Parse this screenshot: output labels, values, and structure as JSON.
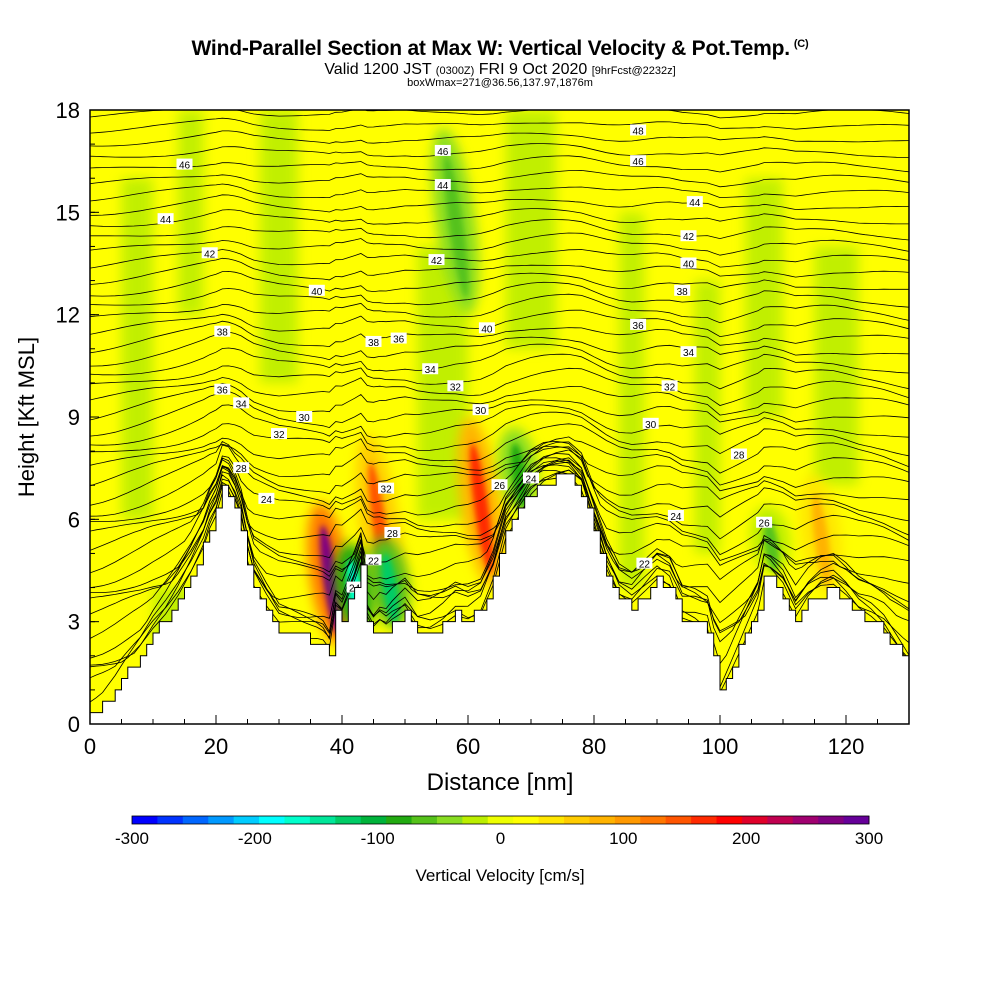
{
  "title": {
    "main": "Wind-Parallel Section at Max W: Vertical Velocity & Pot.Temp.",
    "copyright": "(C)",
    "valid_prefix": "Valid 1200 JST",
    "valid_utc": "(0300Z)",
    "valid_suffix": "FRI 9 Oct 2020",
    "forecast": "[9hrFcst@2232z]",
    "box": "boxWmax=271@36.56,137.97,1876m"
  },
  "chart_data": {
    "type": "heatmap",
    "xlabel": "Distance [nm]",
    "ylabel": "Height [Kft MSL]",
    "xlim": [
      0,
      130
    ],
    "ylim": [
      0,
      18
    ],
    "xticks": [
      0,
      20,
      40,
      60,
      80,
      100,
      120
    ],
    "yticks": [
      0,
      3,
      6,
      9,
      12,
      15,
      18
    ],
    "terrain": {
      "x": [
        0,
        2,
        4,
        6,
        8,
        10,
        12,
        14,
        16,
        18,
        19,
        20,
        21,
        22,
        23,
        24,
        25,
        26,
        28,
        30,
        32,
        34,
        36,
        37,
        38,
        39,
        40,
        41,
        42,
        43,
        44,
        45,
        46,
        47,
        48,
        50,
        52,
        54,
        56,
        58,
        60,
        62,
        64,
        66,
        68,
        70,
        72,
        74,
        76,
        78,
        80,
        82,
        84,
        86,
        88,
        90,
        92,
        94,
        96,
        98,
        100,
        102,
        104,
        106,
        107,
        108,
        110,
        112,
        114,
        116,
        118,
        120,
        122,
        124,
        126,
        128,
        130
      ],
      "height": [
        0.3,
        0.6,
        1.0,
        1.5,
        2.0,
        2.6,
        3.1,
        3.7,
        4.4,
        5.2,
        5.8,
        6.2,
        6.9,
        6.8,
        6.4,
        5.8,
        4.8,
        4.0,
        3.3,
        2.7,
        2.6,
        2.5,
        2.4,
        2.3,
        2.0,
        3.2,
        3.0,
        3.5,
        4.0,
        4.6,
        2.9,
        2.6,
        2.8,
        2.7,
        2.9,
        3.2,
        2.7,
        2.7,
        2.9,
        3.2,
        3.1,
        3.3,
        4.2,
        5.6,
        6.2,
        6.8,
        7.1,
        7.2,
        7.2,
        6.8,
        5.6,
        4.4,
        3.6,
        3.4,
        3.8,
        4.2,
        4.0,
        3.1,
        3.0,
        2.8,
        1.0,
        1.8,
        2.6,
        3.4,
        4.3,
        4.2,
        3.8,
        3.0,
        3.5,
        3.8,
        3.9,
        3.6,
        3.2,
        3.0,
        2.7,
        2.2,
        1.7
      ]
    },
    "updraft_cores": [
      {
        "x": 38,
        "bottom": 2.3,
        "top": 6.5,
        "value": 260
      },
      {
        "x": 46,
        "bottom": 3.0,
        "top": 8.5,
        "value": 140
      },
      {
        "x": 62,
        "bottom": 4.0,
        "top": 9.0,
        "value": 170
      },
      {
        "x": 116,
        "bottom": 3.8,
        "top": 7.3,
        "value": 80
      }
    ],
    "downdraft_cores": [
      {
        "x": 42,
        "bottom": 2.7,
        "top": 5.3,
        "value": -160
      },
      {
        "x": 47.5,
        "bottom": 2.8,
        "top": 5.5,
        "value": -120
      },
      {
        "x": 68,
        "bottom": 6.2,
        "top": 8.7,
        "value": -80
      },
      {
        "x": 108,
        "bottom": 4.4,
        "top": 6.4,
        "value": -60
      },
      {
        "x": 58,
        "bottom": 12.0,
        "top": 17.5,
        "value": -70
      }
    ],
    "theta_contours": {
      "levels": [
        22,
        24,
        26,
        28,
        30,
        32,
        34,
        36,
        38,
        40,
        42,
        44,
        46,
        48
      ],
      "labels": [
        {
          "x": 42,
          "y": 4.0,
          "text": "24"
        },
        {
          "x": 45,
          "y": 4.8,
          "text": "22"
        },
        {
          "x": 48,
          "y": 5.6,
          "text": "28"
        },
        {
          "x": 47,
          "y": 6.9,
          "text": "32"
        },
        {
          "x": 30,
          "y": 8.5,
          "text": "32"
        },
        {
          "x": 24,
          "y": 7.5,
          "text": "28"
        },
        {
          "x": 28,
          "y": 6.6,
          "text": "24"
        },
        {
          "x": 24,
          "y": 9.4,
          "text": "34"
        },
        {
          "x": 21,
          "y": 9.8,
          "text": "36"
        },
        {
          "x": 21,
          "y": 11.5,
          "text": "38"
        },
        {
          "x": 34,
          "y": 9.0,
          "text": "30"
        },
        {
          "x": 45,
          "y": 11.2,
          "text": "38"
        },
        {
          "x": 49,
          "y": 11.3,
          "text": "36"
        },
        {
          "x": 54,
          "y": 10.4,
          "text": "34"
        },
        {
          "x": 58,
          "y": 9.9,
          "text": "32"
        },
        {
          "x": 62,
          "y": 9.2,
          "text": "30"
        },
        {
          "x": 65,
          "y": 7.0,
          "text": "26"
        },
        {
          "x": 70,
          "y": 7.2,
          "text": "24"
        },
        {
          "x": 36,
          "y": 12.7,
          "text": "40"
        },
        {
          "x": 55,
          "y": 13.6,
          "text": "42"
        },
        {
          "x": 56,
          "y": 15.8,
          "text": "44"
        },
        {
          "x": 56,
          "y": 16.8,
          "text": "46"
        },
        {
          "x": 63,
          "y": 11.6,
          "text": "40"
        },
        {
          "x": 15,
          "y": 16.4,
          "text": "46"
        },
        {
          "x": 12,
          "y": 14.8,
          "text": "44"
        },
        {
          "x": 19,
          "y": 13.8,
          "text": "42"
        },
        {
          "x": 87,
          "y": 17.4,
          "text": "48"
        },
        {
          "x": 87,
          "y": 16.5,
          "text": "46"
        },
        {
          "x": 96,
          "y": 15.3,
          "text": "44"
        },
        {
          "x": 95,
          "y": 14.3,
          "text": "42"
        },
        {
          "x": 95,
          "y": 13.5,
          "text": "40"
        },
        {
          "x": 94,
          "y": 12.7,
          "text": "38"
        },
        {
          "x": 87,
          "y": 11.7,
          "text": "36"
        },
        {
          "x": 95,
          "y": 10.9,
          "text": "34"
        },
        {
          "x": 92,
          "y": 9.9,
          "text": "32"
        },
        {
          "x": 89,
          "y": 8.8,
          "text": "30"
        },
        {
          "x": 103,
          "y": 7.9,
          "text": "28"
        },
        {
          "x": 93,
          "y": 6.1,
          "text": "24"
        },
        {
          "x": 88,
          "y": 4.7,
          "text": "22"
        },
        {
          "x": 107,
          "y": 5.9,
          "text": "26"
        }
      ]
    },
    "colorbar": {
      "label": "Vertical Velocity [cm/s]",
      "min": -300,
      "max": 300,
      "ticks": [
        "-300",
        "-200",
        "-100",
        "0",
        "100",
        "200",
        "300"
      ],
      "colors": [
        "#0000ff",
        "#0033ff",
        "#0066ff",
        "#0099ff",
        "#00ccff",
        "#00ffff",
        "#00ffcc",
        "#00e699",
        "#00cc66",
        "#00b33b",
        "#22aa11",
        "#55c21a",
        "#88dd22",
        "#bbee00",
        "#eeff00",
        "#ffff00",
        "#ffe600",
        "#ffcc00",
        "#ffb300",
        "#ff9900",
        "#ff7700",
        "#ff5500",
        "#ff2a00",
        "#ff0000",
        "#e0002a",
        "#c00050",
        "#a00070",
        "#800080",
        "#660099"
      ]
    }
  }
}
